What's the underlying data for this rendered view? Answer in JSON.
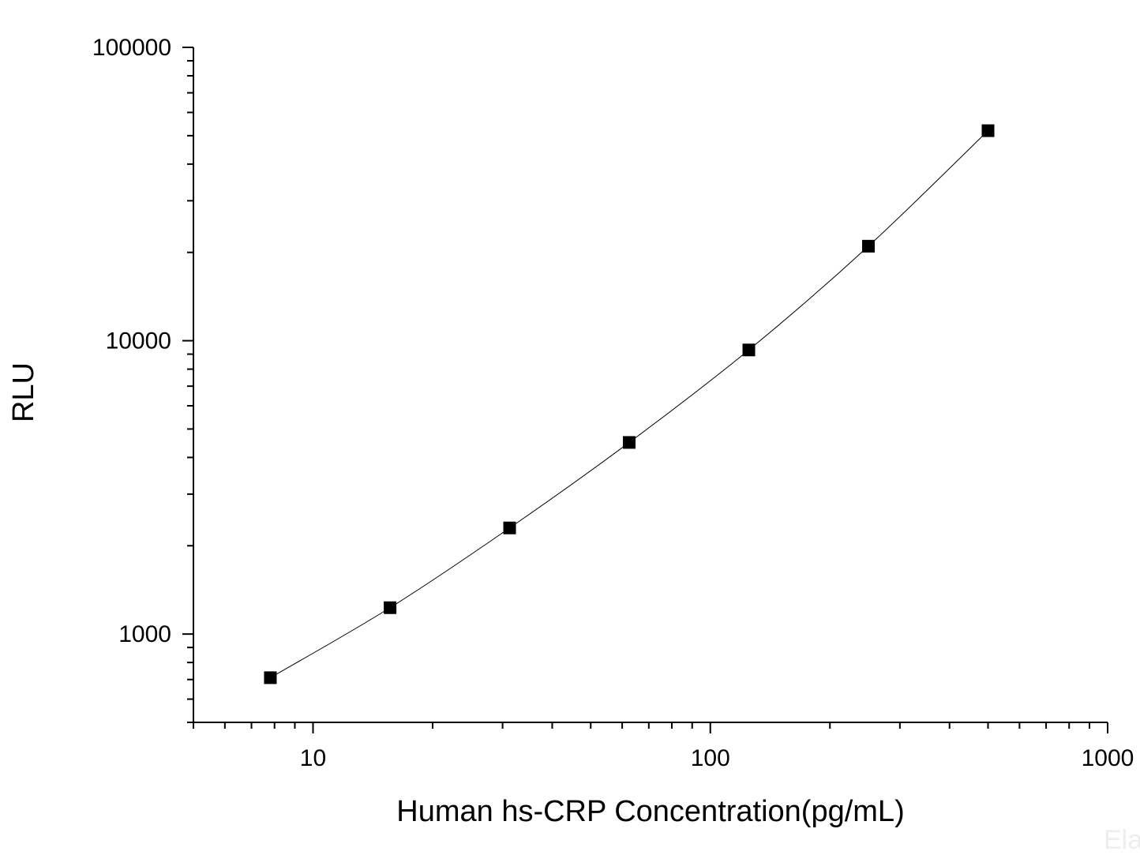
{
  "chart_data": {
    "type": "line",
    "title": "",
    "xlabel": "Human hs-CRP Concentration(pg/mL)",
    "ylabel": "RLU",
    "x_scale": "log",
    "y_scale": "log",
    "xlim": [
      5,
      1000
    ],
    "ylim": [
      500,
      100000
    ],
    "x_ticks": [
      {
        "value": 10,
        "label": "10"
      },
      {
        "value": 100,
        "label": "100"
      },
      {
        "value": 1000,
        "label": "1000"
      }
    ],
    "y_ticks": [
      {
        "value": 1000,
        "label": "1000"
      },
      {
        "value": 10000,
        "label": "10000"
      },
      {
        "value": 100000,
        "label": "100000"
      }
    ],
    "grid": false,
    "legend": "none",
    "series": [
      {
        "marker": "square",
        "color": "#000000",
        "x": [
          7.81,
          15.63,
          31.25,
          62.5,
          125,
          250,
          500
        ],
        "y": [
          710,
          1230,
          2300,
          4500,
          9300,
          21000,
          52000
        ]
      }
    ]
  },
  "watermark": "Ela"
}
